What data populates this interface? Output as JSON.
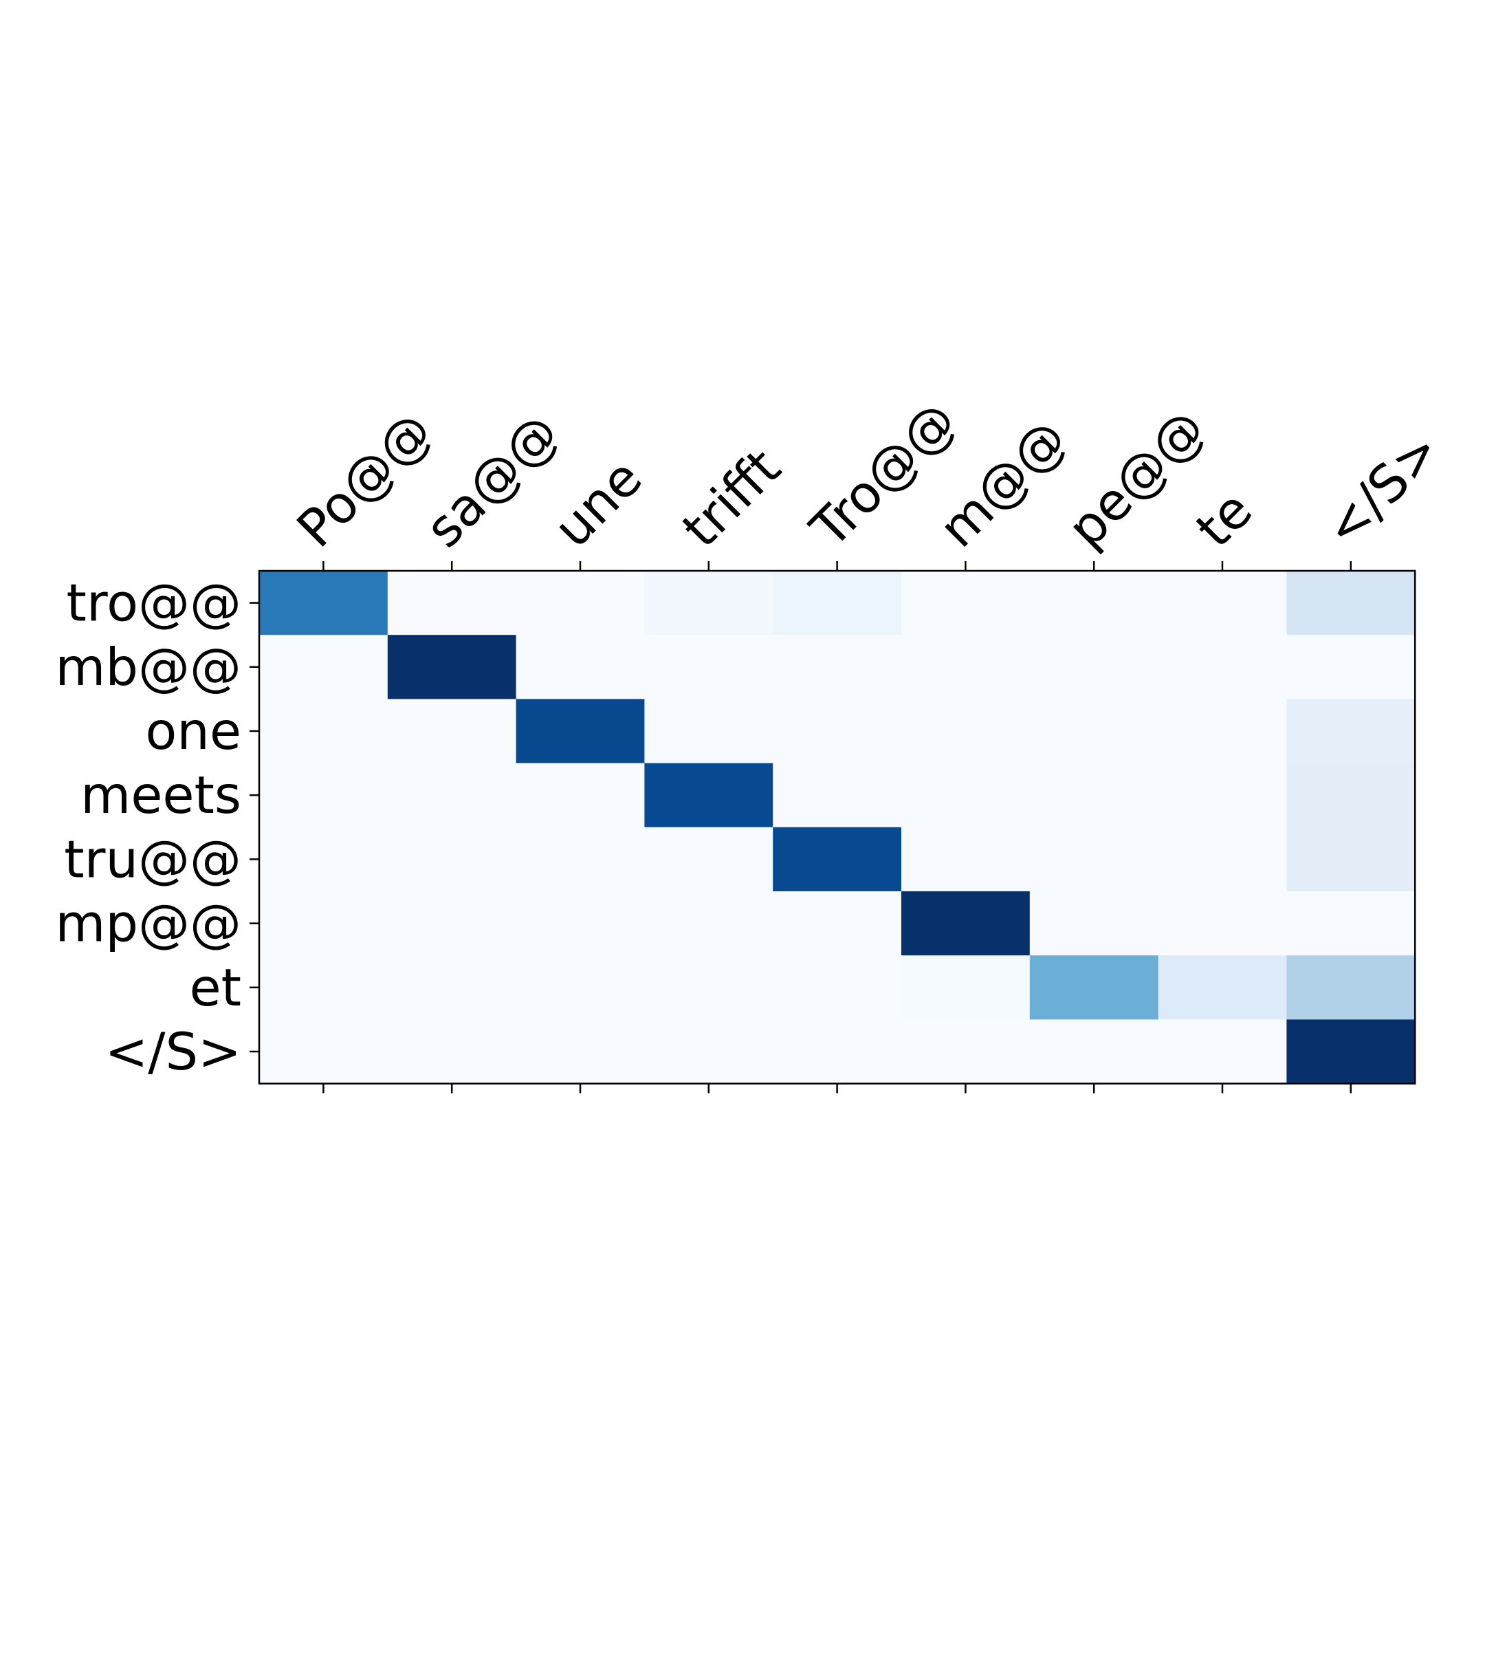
{
  "chart_data": {
    "type": "heatmap",
    "title": "",
    "xlabel": "",
    "ylabel": "",
    "x_axis_position": "top",
    "x_tick_rotation_deg": -45,
    "colormap": "Blues",
    "colormap_stops": [
      "#f7fbff",
      "#deebf7",
      "#c6dbef",
      "#9ecae1",
      "#6baed6",
      "#4292c6",
      "#2171b5",
      "#08519c",
      "#08306b"
    ],
    "grid": false,
    "x_categories": [
      "Po@@",
      "sa@@",
      "une",
      "trifft",
      "Tro@@",
      "m@@",
      "pe@@",
      "te",
      "</S>"
    ],
    "y_categories": [
      "tro@@",
      "mb@@",
      "one",
      "meets",
      "tru@@",
      "mp@@",
      "et",
      "</S>"
    ],
    "values": [
      [
        0.72,
        0.0,
        0.0,
        0.02,
        0.05,
        0.0,
        0.0,
        0.0,
        0.17
      ],
      [
        0.0,
        1.0,
        0.0,
        0.0,
        0.0,
        0.0,
        0.0,
        0.0,
        0.0
      ],
      [
        0.0,
        0.0,
        0.91,
        0.0,
        0.0,
        0.0,
        0.0,
        0.0,
        0.09
      ],
      [
        0.0,
        0.0,
        0.0,
        0.9,
        0.0,
        0.0,
        0.0,
        0.0,
        0.1
      ],
      [
        0.0,
        0.0,
        0.0,
        0.0,
        0.9,
        0.0,
        0.0,
        0.0,
        0.1
      ],
      [
        0.0,
        0.0,
        0.0,
        0.0,
        0.0,
        1.0,
        0.0,
        0.0,
        0.0
      ],
      [
        0.0,
        0.0,
        0.0,
        0.0,
        0.0,
        0.01,
        0.5,
        0.13,
        0.32
      ],
      [
        0.0,
        0.0,
        0.0,
        0.0,
        0.0,
        0.0,
        0.0,
        0.0,
        1.0
      ]
    ],
    "vmin": 0,
    "vmax": 1
  }
}
